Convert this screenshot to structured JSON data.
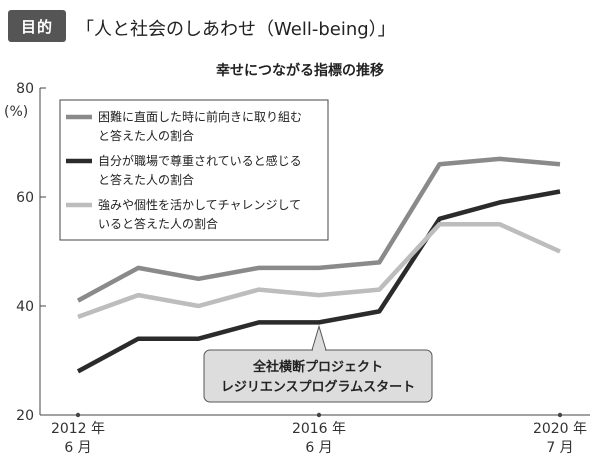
{
  "header": {
    "badge": "目的",
    "title": "「人と社会のしあわせ（Well-being）」"
  },
  "chart_data": {
    "type": "line",
    "title": "幸せにつながる指標の推移",
    "ylabel": "(%)",
    "ylim": [
      20,
      80
    ],
    "yticks": [
      20,
      40,
      60,
      80
    ],
    "grid": false,
    "legend_position": "top-left",
    "x": [
      2012.5,
      2013.5,
      2014.5,
      2015.5,
      2016.5,
      2017.5,
      2018.5,
      2019.5,
      2020.5
    ],
    "xlim": [
      2012.5,
      2020.5
    ],
    "xticks": [
      {
        "x": 2012.5,
        "label": [
          "2012 年",
          "6 月"
        ]
      },
      {
        "x": 2016.5,
        "label": [
          "2016 年",
          "6 月"
        ]
      },
      {
        "x": 2020.5,
        "label": [
          "2020 年",
          "7 月"
        ]
      }
    ],
    "series": [
      {
        "name": [
          "困難に直面した時に前向きに取り組む",
          "と答えた人の割合"
        ],
        "color": "#8a8a8a",
        "values": [
          41,
          47,
          45,
          47,
          47,
          48,
          66,
          67,
          66
        ]
      },
      {
        "name": [
          "自分が職場で尊重されていると感じる",
          "と答えた人の割合"
        ],
        "color": "#2b2b2b",
        "values": [
          28,
          34,
          34,
          37,
          37,
          39,
          56,
          59,
          61
        ]
      },
      {
        "name": [
          "強みや個性を活かしてチャレンジして",
          "いると答えた人の割合"
        ],
        "color": "#bdbdbd",
        "values": [
          38,
          42,
          40,
          43,
          42,
          43,
          55,
          55,
          50
        ]
      }
    ],
    "annotation": {
      "text": [
        "全社横断プロジェクト",
        "レジリエンスプログラムスタート"
      ],
      "x": 2016.5
    }
  }
}
